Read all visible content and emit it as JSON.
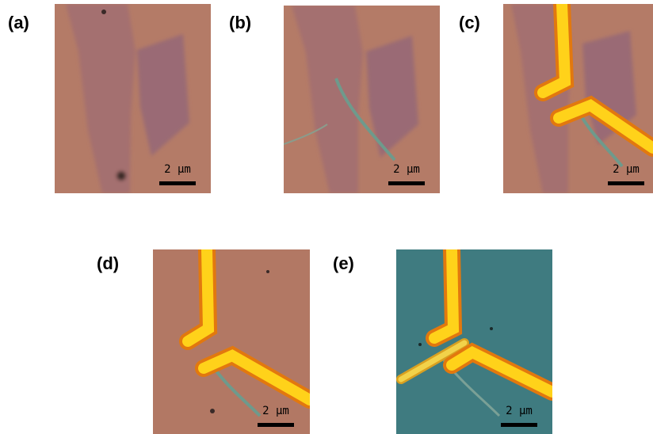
{
  "panels": [
    {
      "label": "(a)",
      "scale_bar": "2 μm"
    },
    {
      "label": "(b)",
      "scale_bar": "2 μm"
    },
    {
      "label": "(c)",
      "scale_bar": "2 μm"
    },
    {
      "label": "(d)",
      "scale_bar": "2 μm"
    },
    {
      "label": "(e)",
      "scale_bar": "2 μm"
    }
  ]
}
